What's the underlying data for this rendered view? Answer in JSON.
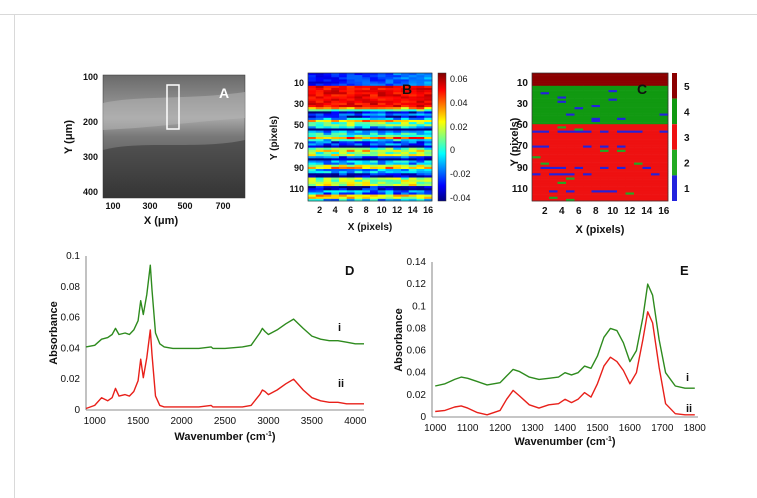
{
  "chart_data": [
    {
      "id": "A",
      "type": "image",
      "panel_label": "A",
      "xlabel": "X (μm)",
      "ylabel": "Y (μm)",
      "xticks": [
        "100",
        "300",
        "500",
        "700"
      ],
      "yticks": [
        "100",
        "200",
        "300",
        "400"
      ],
      "colors": {
        "background": "#5c5c5c",
        "highlight": "#ffffff"
      }
    },
    {
      "id": "B",
      "type": "heatmap",
      "panel_label": "B",
      "xlabel": "X (pixels)",
      "ylabel": "Y (pixels)",
      "xticks": [
        "2",
        "4",
        "6",
        "8",
        "10",
        "12",
        "14",
        "16"
      ],
      "yticks": [
        "10",
        "30",
        "50",
        "70",
        "90",
        "110"
      ],
      "colorbar_ticks": [
        "0.06",
        "0.04",
        "0.02",
        "0",
        "-0.02",
        "-0.04"
      ],
      "colorbar_range": [
        -0.045,
        0.065
      ],
      "rows": 60,
      "cols": 16,
      "colormap": [
        "#00007f",
        "#0000ff",
        "#00ffff",
        "#ffff00",
        "#ff0000",
        "#7f0000"
      ]
    },
    {
      "id": "C",
      "type": "heatmap",
      "panel_label": "C",
      "xlabel": "X (pixels)",
      "ylabel": "Y (pixels)",
      "xticks": [
        "2",
        "4",
        "6",
        "8",
        "10",
        "12",
        "14",
        "16"
      ],
      "yticks": [
        "10",
        "30",
        "50",
        "70",
        "90",
        "110"
      ],
      "colorbar_ticks": [
        "5",
        "4",
        "3",
        "2",
        "1"
      ],
      "class_colors": {
        "1": "#2222dd",
        "2": "#22aa22",
        "3": "#ee1111",
        "4": "#119911",
        "5": "#8b0000"
      }
    },
    {
      "id": "D",
      "type": "line",
      "panel_label": "D",
      "xlabel": "Wavenumber (cm⁻¹)",
      "ylabel": "Absorbance",
      "xlim": [
        900,
        4100
      ],
      "ylim": [
        0,
        0.1
      ],
      "xticks": [
        "1000",
        "1500",
        "2000",
        "2500",
        "3000",
        "3500",
        "4000"
      ],
      "yticks": [
        "0",
        "0.02",
        "0.04",
        "0.06",
        "0.08",
        "0.1"
      ],
      "series": [
        {
          "name": "i",
          "color": "#2e8b1e",
          "x": [
            900,
            1000,
            1080,
            1150,
            1200,
            1240,
            1280,
            1350,
            1400,
            1450,
            1500,
            1530,
            1560,
            1600,
            1640,
            1660,
            1700,
            1750,
            1800,
            1900,
            2000,
            2200,
            2340,
            2360,
            2500,
            2700,
            2800,
            2900,
            2930,
            2960,
            3000,
            3100,
            3200,
            3290,
            3400,
            3500,
            3600,
            3700,
            3800,
            3900,
            4000,
            4100
          ],
          "y": [
            0.041,
            0.042,
            0.046,
            0.047,
            0.049,
            0.053,
            0.049,
            0.05,
            0.049,
            0.052,
            0.058,
            0.071,
            0.062,
            0.075,
            0.094,
            0.078,
            0.05,
            0.043,
            0.041,
            0.04,
            0.04,
            0.04,
            0.041,
            0.04,
            0.04,
            0.041,
            0.042,
            0.05,
            0.053,
            0.051,
            0.049,
            0.052,
            0.056,
            0.059,
            0.053,
            0.048,
            0.046,
            0.045,
            0.045,
            0.044,
            0.043,
            0.043
          ]
        },
        {
          "name": "ii",
          "color": "#e8201a",
          "x": [
            900,
            1000,
            1080,
            1150,
            1200,
            1240,
            1280,
            1350,
            1400,
            1450,
            1500,
            1530,
            1560,
            1600,
            1640,
            1660,
            1700,
            1750,
            1800,
            1900,
            2000,
            2200,
            2340,
            2360,
            2500,
            2700,
            2800,
            2900,
            2930,
            2960,
            3000,
            3100,
            3200,
            3290,
            3400,
            3500,
            3600,
            3700,
            3800,
            3900,
            4000,
            4100
          ],
          "y": [
            0.001,
            0.003,
            0.008,
            0.006,
            0.008,
            0.014,
            0.009,
            0.01,
            0.009,
            0.012,
            0.019,
            0.033,
            0.021,
            0.034,
            0.052,
            0.036,
            0.009,
            0.003,
            0.002,
            0.002,
            0.002,
            0.002,
            0.003,
            0.002,
            0.002,
            0.002,
            0.003,
            0.01,
            0.013,
            0.012,
            0.01,
            0.013,
            0.017,
            0.02,
            0.013,
            0.008,
            0.006,
            0.005,
            0.005,
            0.004,
            0.004,
            0.004
          ]
        }
      ],
      "annotations": [
        "i",
        "ii"
      ]
    },
    {
      "id": "E",
      "type": "line",
      "panel_label": "E",
      "xlabel": "Wavenumber (cm⁻¹)",
      "ylabel": "Absorbance",
      "xlim": [
        990,
        1810
      ],
      "ylim": [
        0,
        0.14
      ],
      "xticks": [
        "1000",
        "1100",
        "1200",
        "1300",
        "1400",
        "1500",
        "1600",
        "1700",
        "1800"
      ],
      "yticks": [
        "0",
        "0.02",
        "0.04",
        "0.06",
        "0.08",
        "0.1",
        "0.12",
        "0.14"
      ],
      "series": [
        {
          "name": "i",
          "color": "#2e8b1e",
          "x": [
            1000,
            1030,
            1060,
            1080,
            1100,
            1130,
            1160,
            1200,
            1220,
            1240,
            1260,
            1290,
            1320,
            1350,
            1380,
            1400,
            1420,
            1440,
            1460,
            1480,
            1500,
            1520,
            1540,
            1560,
            1580,
            1600,
            1620,
            1640,
            1655,
            1670,
            1690,
            1710,
            1740,
            1770,
            1800
          ],
          "y": [
            0.028,
            0.03,
            0.034,
            0.036,
            0.035,
            0.032,
            0.029,
            0.031,
            0.037,
            0.043,
            0.041,
            0.036,
            0.034,
            0.035,
            0.036,
            0.04,
            0.038,
            0.04,
            0.046,
            0.044,
            0.055,
            0.072,
            0.08,
            0.078,
            0.067,
            0.05,
            0.06,
            0.09,
            0.12,
            0.11,
            0.07,
            0.04,
            0.028,
            0.026,
            0.026
          ]
        },
        {
          "name": "ii",
          "color": "#e8201a",
          "x": [
            1000,
            1030,
            1060,
            1080,
            1100,
            1130,
            1160,
            1200,
            1220,
            1240,
            1260,
            1290,
            1320,
            1350,
            1380,
            1400,
            1420,
            1440,
            1460,
            1480,
            1500,
            1520,
            1540,
            1560,
            1580,
            1600,
            1620,
            1640,
            1655,
            1670,
            1690,
            1710,
            1740,
            1770,
            1800
          ],
          "y": [
            0.005,
            0.006,
            0.009,
            0.01,
            0.008,
            0.004,
            0.002,
            0.006,
            0.016,
            0.024,
            0.019,
            0.011,
            0.008,
            0.011,
            0.012,
            0.016,
            0.013,
            0.016,
            0.022,
            0.018,
            0.03,
            0.046,
            0.054,
            0.05,
            0.042,
            0.03,
            0.04,
            0.07,
            0.095,
            0.085,
            0.045,
            0.012,
            0.003,
            0.002,
            0.002
          ]
        }
      ],
      "annotations": [
        "i",
        "ii"
      ]
    }
  ]
}
